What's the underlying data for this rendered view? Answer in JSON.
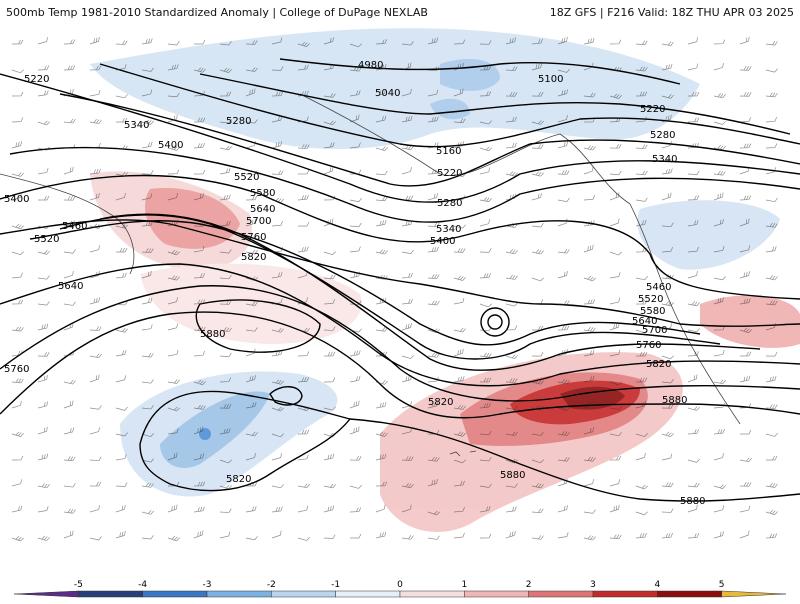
{
  "header": {
    "left_title": "500mb Temp 1981-2010 Standardized Anomaly | College of DuPage NEXLAB",
    "right_title": "18Z GFS | F216 Valid: 18Z THU APR 03 2025"
  },
  "contours": [
    {
      "id": "c4980",
      "label": "4980"
    },
    {
      "id": "c5040",
      "label": "5040"
    },
    {
      "id": "c5100",
      "label": "5100"
    },
    {
      "id": "c5160",
      "label": "5160"
    },
    {
      "id": "c5220",
      "label": "5220"
    },
    {
      "id": "c5280",
      "label": "5280"
    },
    {
      "id": "c5340",
      "label": "5340"
    },
    {
      "id": "c5400",
      "label": "5400"
    },
    {
      "id": "c5460",
      "label": "5460"
    },
    {
      "id": "c5520",
      "label": "5520"
    },
    {
      "id": "c5580",
      "label": "5580"
    },
    {
      "id": "c5640",
      "label": "5640"
    },
    {
      "id": "c5700",
      "label": "5700"
    },
    {
      "id": "c5760",
      "label": "5760"
    },
    {
      "id": "c5820",
      "label": "5820"
    },
    {
      "id": "c5880",
      "label": "5880"
    }
  ],
  "colorbar": {
    "ticks": [
      "-5",
      "-4",
      "-3",
      "-2",
      "-1",
      "0",
      "1",
      "2",
      "3",
      "4",
      "5"
    ],
    "colors": [
      "#5b2d8a",
      "#27407a",
      "#3a78c6",
      "#7ab2e4",
      "#b9d5ef",
      "#e6eef7",
      "#f5dede",
      "#f0b6b6",
      "#e07474",
      "#c42a2a",
      "#8b0d0d",
      "#e8b83a"
    ]
  }
}
